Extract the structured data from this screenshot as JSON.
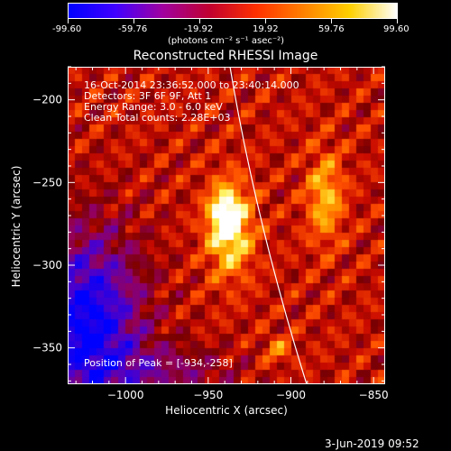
{
  "colorbar": {
    "tick_labels": [
      "-99.60",
      "-59.76",
      "-19.92",
      "19.92",
      "59.76",
      "99.60"
    ],
    "units": "(photons cm⁻² s⁻¹ asec⁻²)",
    "gradient": [
      "#0000ff",
      "#4000ff",
      "#a000a0",
      "#c00030",
      "#ff3000",
      "#ff8000",
      "#ffd000",
      "#ffffff"
    ]
  },
  "title": "Reconstructed RHESSI Image",
  "info": {
    "line1": "16-Oct-2014 23:36:52.000 to 23:40:14.000",
    "line2": "Detectors: 3F 6F 9F, Att 1",
    "line3": "Energy Range: 3.0 - 6.0 keV",
    "line4": "Clean     Total counts: 2.28E+03",
    "peak": "Position of Peak = [-934,-258]"
  },
  "axes": {
    "xlabel": "Heliocentric X (arcsec)",
    "ylabel": "Heliocentric Y (arcsec)",
    "xticks": [
      {
        "value": -1000,
        "label": "−1000"
      },
      {
        "value": -950,
        "label": "−950"
      },
      {
        "value": -900,
        "label": "−900"
      },
      {
        "value": -850,
        "label": "−850"
      }
    ],
    "yticks": [
      {
        "value": -200,
        "label": "−200"
      },
      {
        "value": -250,
        "label": "−250"
      },
      {
        "value": -300,
        "label": "−300"
      },
      {
        "value": -350,
        "label": "−350"
      }
    ],
    "xlim": [
      -1035,
      -843
    ],
    "ylim": [
      -372,
      -180
    ]
  },
  "footer": {
    "date": "3-Jun-2019 09:52"
  }
}
